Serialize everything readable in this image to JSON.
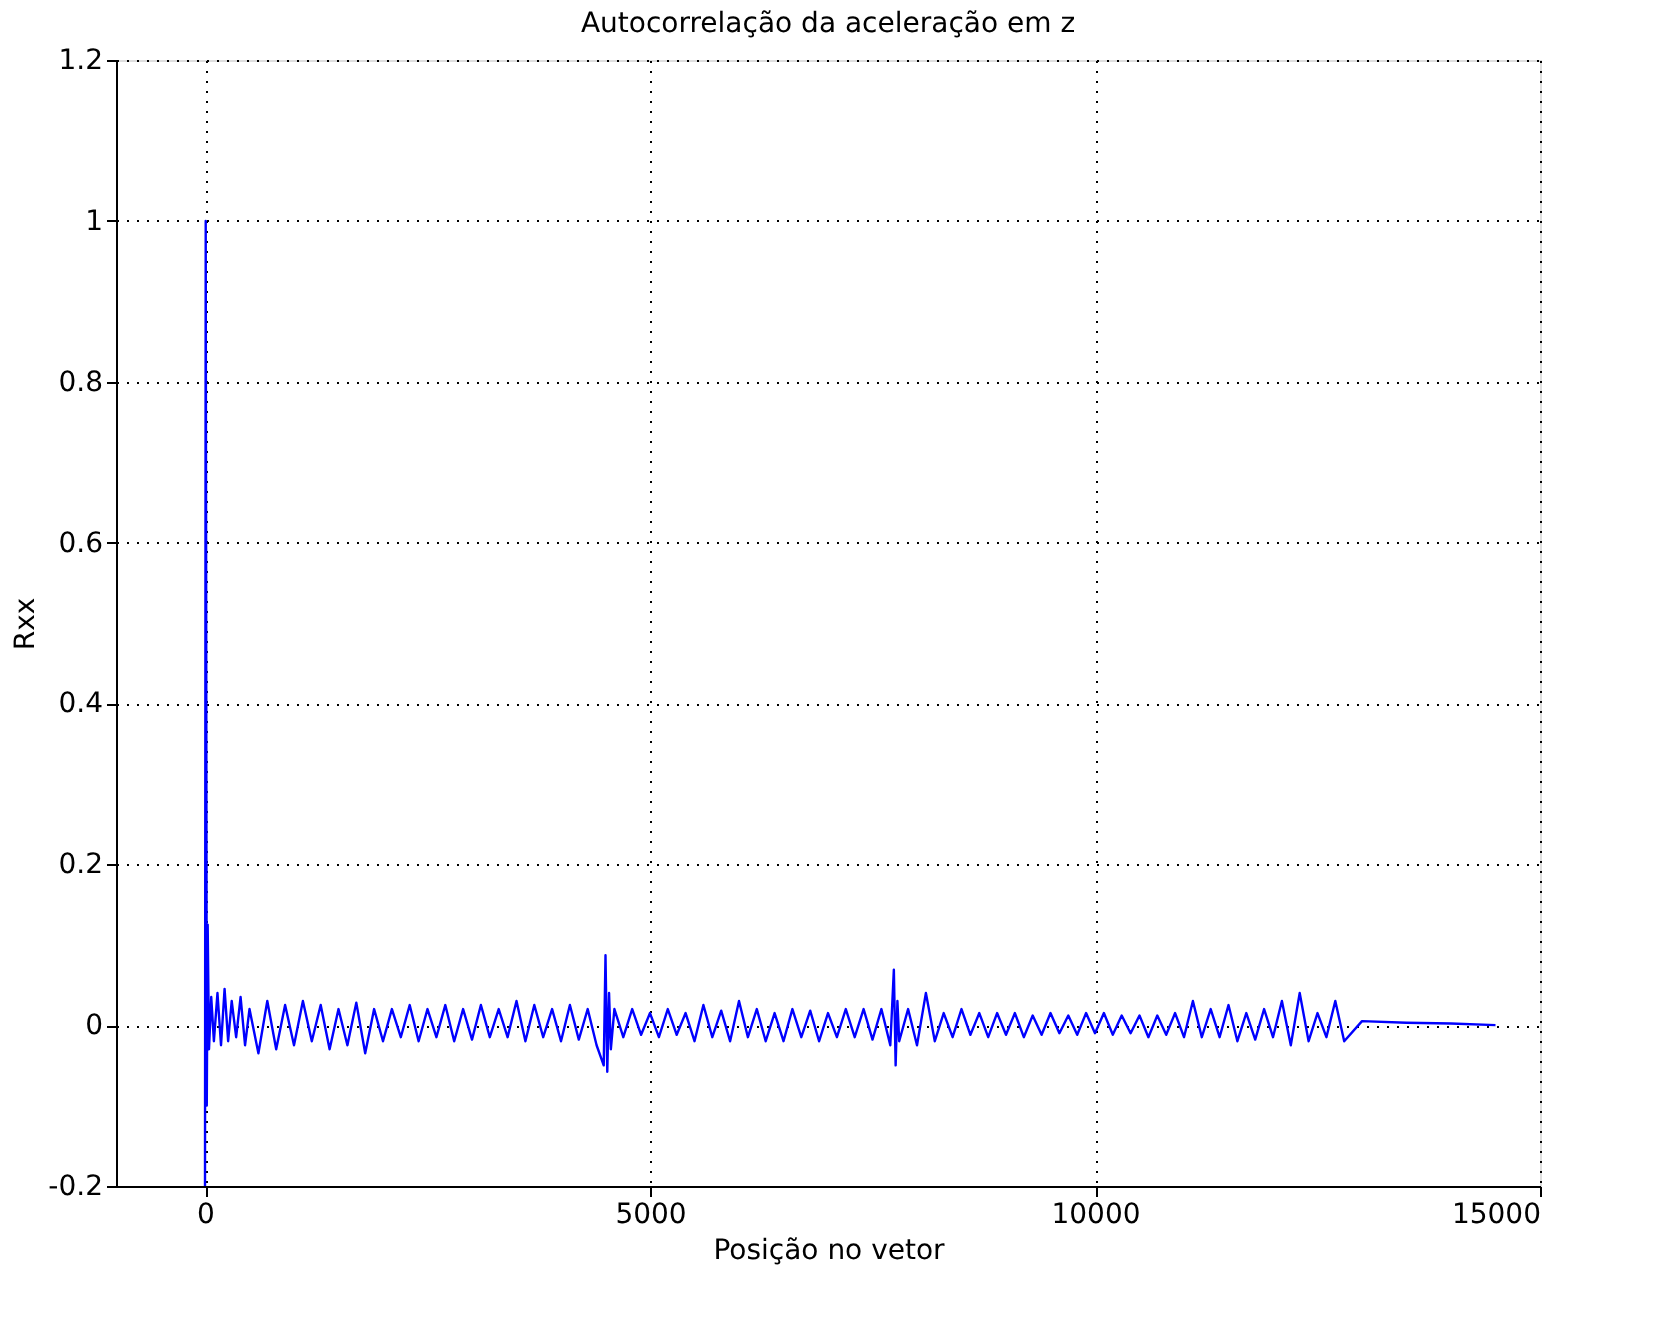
{
  "chart_data": {
    "type": "line",
    "title": "Autocorrelação da aceleração em z",
    "xlabel": "Posição no vetor",
    "ylabel": "Rxx",
    "xlim": [
      -1000,
      15000
    ],
    "xticks": [
      0,
      5000,
      10000,
      15000
    ],
    "ylim": [
      -0.2,
      1.2
    ],
    "yticks": [
      -0.2,
      0,
      0.2,
      0.4,
      0.6,
      0.8,
      1,
      1.2
    ],
    "grid": true,
    "line_style": "solid",
    "marker": "none",
    "series": [
      {
        "color": "#0000ff",
        "x": [
          0,
          8,
          20,
          30,
          45,
          70,
          100,
          140,
          180,
          220,
          260,
          300,
          350,
          400,
          450,
          500,
          600,
          700,
          800,
          900,
          1000,
          1100,
          1200,
          1300,
          1400,
          1500,
          1600,
          1700,
          1800,
          1900,
          2000,
          2100,
          2200,
          2300,
          2400,
          2500,
          2600,
          2700,
          2800,
          2900,
          3000,
          3100,
          3200,
          3300,
          3400,
          3500,
          3600,
          3700,
          3800,
          3900,
          4000,
          4100,
          4200,
          4300,
          4400,
          4480,
          4500,
          4520,
          4540,
          4560,
          4600,
          4700,
          4800,
          4900,
          5000,
          5100,
          5200,
          5300,
          5400,
          5500,
          5600,
          5700,
          5800,
          5900,
          6000,
          6100,
          6200,
          6300,
          6400,
          6500,
          6600,
          6700,
          6800,
          6900,
          7000,
          7100,
          7200,
          7300,
          7400,
          7500,
          7600,
          7700,
          7740,
          7760,
          7780,
          7800,
          7900,
          8000,
          8100,
          8200,
          8300,
          8400,
          8500,
          8600,
          8700,
          8800,
          8900,
          9000,
          9100,
          9200,
          9300,
          9400,
          9500,
          9600,
          9700,
          9800,
          9900,
          10000,
          10100,
          10200,
          10300,
          10400,
          10500,
          10600,
          10700,
          10800,
          10900,
          11000,
          11100,
          11200,
          11300,
          11400,
          11500,
          11600,
          11700,
          11800,
          11900,
          12000,
          12100,
          12200,
          12300,
          12400,
          12500,
          12600,
          12700,
          12800,
          13000,
          13500,
          14000,
          14500
        ],
        "values": [
          -0.2,
          1.0,
          -0.1,
          0.125,
          -0.03,
          0.035,
          -0.02,
          0.04,
          -0.025,
          0.045,
          -0.02,
          0.03,
          -0.015,
          0.035,
          -0.025,
          0.02,
          -0.035,
          0.03,
          -0.03,
          0.025,
          -0.025,
          0.03,
          -0.02,
          0.025,
          -0.03,
          0.02,
          -0.025,
          0.028,
          -0.035,
          0.02,
          -0.02,
          0.02,
          -0.015,
          0.025,
          -0.02,
          0.02,
          -0.015,
          0.025,
          -0.02,
          0.02,
          -0.018,
          0.025,
          -0.015,
          0.02,
          -0.015,
          0.03,
          -0.02,
          0.025,
          -0.015,
          0.02,
          -0.02,
          0.025,
          -0.018,
          0.02,
          -0.025,
          -0.05,
          0.087,
          -0.058,
          0.04,
          -0.03,
          0.02,
          -0.015,
          0.02,
          -0.012,
          0.015,
          -0.015,
          0.02,
          -0.012,
          0.015,
          -0.02,
          0.025,
          -0.015,
          0.018,
          -0.02,
          0.03,
          -0.015,
          0.02,
          -0.02,
          0.015,
          -0.02,
          0.02,
          -0.015,
          0.018,
          -0.02,
          0.015,
          -0.015,
          0.02,
          -0.015,
          0.02,
          -0.018,
          0.02,
          -0.025,
          0.069,
          -0.05,
          0.03,
          -0.02,
          0.02,
          -0.025,
          0.04,
          -0.02,
          0.015,
          -0.015,
          0.02,
          -0.012,
          0.015,
          -0.015,
          0.015,
          -0.012,
          0.015,
          -0.015,
          0.012,
          -0.012,
          0.015,
          -0.01,
          0.012,
          -0.012,
          0.015,
          -0.01,
          0.015,
          -0.012,
          0.012,
          -0.01,
          0.012,
          -0.015,
          0.012,
          -0.012,
          0.015,
          -0.015,
          0.03,
          -0.015,
          0.02,
          -0.015,
          0.025,
          -0.02,
          0.015,
          -0.018,
          0.02,
          -0.015,
          0.03,
          -0.025,
          0.04,
          -0.02,
          0.015,
          -0.015,
          0.03,
          -0.02,
          0.005,
          0.003,
          0.002,
          0.0
        ]
      }
    ]
  }
}
